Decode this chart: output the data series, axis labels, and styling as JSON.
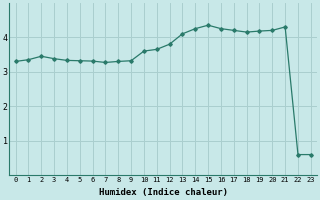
{
  "xlabel": "Humidex (Indice chaleur)",
  "x_values": [
    0,
    1,
    2,
    3,
    4,
    5,
    6,
    7,
    8,
    9,
    10,
    11,
    12,
    13,
    14,
    15,
    16,
    17,
    18,
    19,
    20,
    21,
    22,
    23
  ],
  "y_values": [
    3.3,
    3.35,
    3.45,
    3.38,
    3.33,
    3.32,
    3.31,
    3.27,
    3.3,
    3.32,
    3.6,
    3.65,
    3.8,
    4.1,
    4.25,
    4.35,
    4.25,
    4.2,
    4.15,
    4.18,
    4.2,
    4.3,
    0.6,
    0.6
  ],
  "line_color": "#2a7a6a",
  "bg_color": "#c8e8e8",
  "grid_color": "#aacece",
  "ylim": [
    0,
    5
  ],
  "yticks": [
    1,
    2,
    3,
    4
  ],
  "marker": "D",
  "marker_size": 1.8,
  "line_width": 0.9,
  "xlabel_fontsize": 6.5,
  "tick_fontsize": 5.0
}
